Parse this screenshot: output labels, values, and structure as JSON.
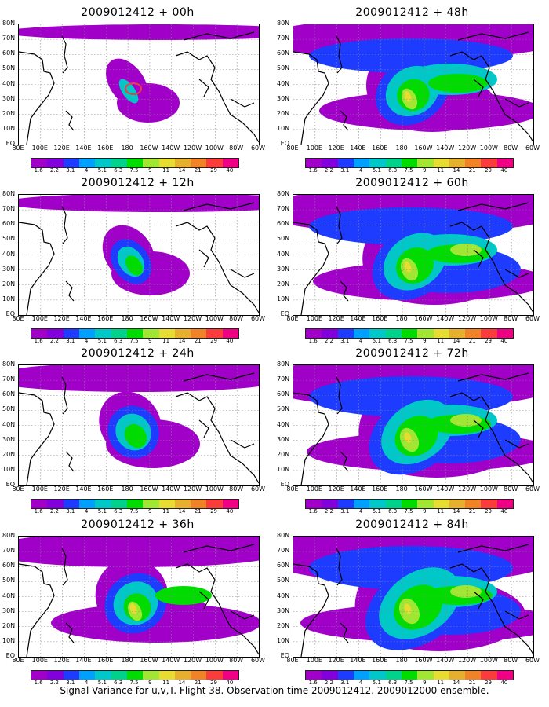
{
  "panels": [
    {
      "title": "2009012412 + 00h",
      "level": 0
    },
    {
      "title": "2009012412 + 48h",
      "level": 4
    },
    {
      "title": "2009012412 + 12h",
      "level": 1
    },
    {
      "title": "2009012412 + 60h",
      "level": 5
    },
    {
      "title": "2009012412 + 24h",
      "level": 2
    },
    {
      "title": "2009012412 + 72h",
      "level": 6
    },
    {
      "title": "2009012412 + 36h",
      "level": 3
    },
    {
      "title": "2009012412 + 84h",
      "level": 7
    }
  ],
  "lat_labels": [
    "80N",
    "70N",
    "60N",
    "50N",
    "40N",
    "30N",
    "20N",
    "10N",
    "EQ"
  ],
  "lon_labels": [
    "80E",
    "100E",
    "120E",
    "140E",
    "160E",
    "180",
    "160W",
    "140W",
    "120W",
    "100W",
    "80W",
    "60W"
  ],
  "colorbar": {
    "colors": [
      "#a000c8",
      "#8200dc",
      "#1e3cff",
      "#00a0ff",
      "#00c8c8",
      "#00d28c",
      "#00dc00",
      "#a0e632",
      "#e6dc32",
      "#e6af2d",
      "#f08228",
      "#fa3c3c",
      "#f00082"
    ],
    "labels": [
      "1.6",
      "2.2",
      "3.1",
      "4",
      "5.1",
      "6.3",
      "7.5",
      "9",
      "11",
      "14",
      "21",
      "29",
      "40"
    ]
  },
  "footer": "Signal Variance for u,v,T. Flight 38. Observation time 2009012412. 2009012000 ensemble."
}
